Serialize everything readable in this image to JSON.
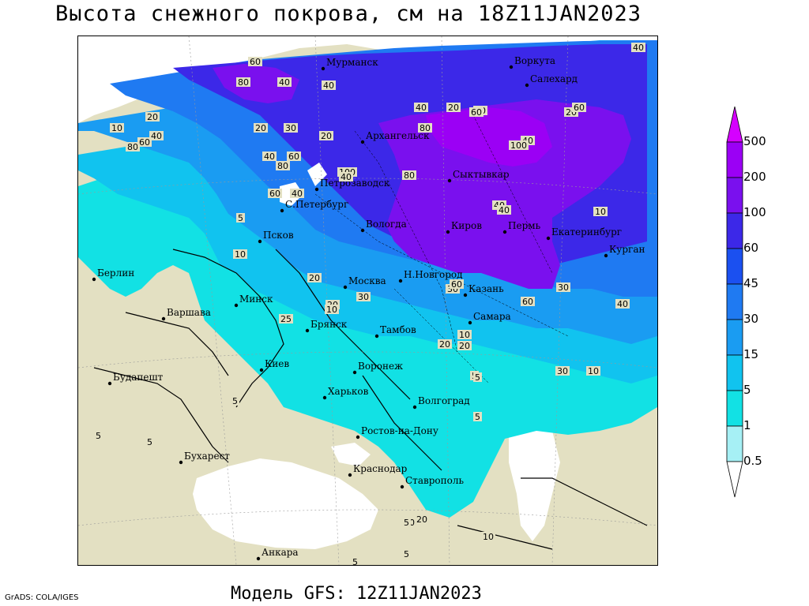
{
  "title": "Высота снежного покрова, см на 18Z11JAN2023",
  "footer": "Модель GFS: 12Z11JAN2023",
  "credit": "GrADS: COLA/IGES",
  "legend": {
    "levels": [
      "500",
      "200",
      "100",
      "60",
      "45",
      "30",
      "15",
      "5",
      "1",
      "0.5"
    ],
    "colors": [
      "#d500ff",
      "#9b00f5",
      "#7a10ee",
      "#3c28e8",
      "#1b50f0",
      "#1f7af2",
      "#1a9cf2",
      "#11c3ef",
      "#12e1e4",
      "#a6f0f5",
      "#ffffff"
    ]
  },
  "cities": [
    {
      "name": "Мурманск"
    },
    {
      "name": "Воркута"
    },
    {
      "name": "Салехард"
    },
    {
      "name": "Архангельск"
    },
    {
      "name": "Сыктывкар"
    },
    {
      "name": "Петрозаводск"
    },
    {
      "name": "С.Петербург"
    },
    {
      "name": "Вологда"
    },
    {
      "name": "Киров"
    },
    {
      "name": "Пермь"
    },
    {
      "name": "Екатеринбург"
    },
    {
      "name": "Курган"
    },
    {
      "name": "Псков"
    },
    {
      "name": "Н.Новгород"
    },
    {
      "name": "Москва"
    },
    {
      "name": "Казань"
    },
    {
      "name": "Берлин"
    },
    {
      "name": "Минск"
    },
    {
      "name": "Варшава"
    },
    {
      "name": "Самара"
    },
    {
      "name": "Брянск"
    },
    {
      "name": "Тамбов"
    },
    {
      "name": "Киев"
    },
    {
      "name": "Воронеж"
    },
    {
      "name": "Будапешт"
    },
    {
      "name": "Харьков"
    },
    {
      "name": "Волгоград"
    },
    {
      "name": "Ростов-на-Дону"
    },
    {
      "name": "Бухарест"
    },
    {
      "name": "Краснодар"
    },
    {
      "name": "Ставрополь"
    },
    {
      "name": "Анкара"
    }
  ],
  "contour_labels": [
    "40",
    "60",
    "80",
    "40",
    "40",
    "40",
    "20",
    "30",
    "20",
    "60",
    "20",
    "10",
    "20",
    "30",
    "20",
    "80",
    "60",
    "40",
    "100",
    "100",
    "80",
    "100",
    "80",
    "60",
    "40",
    "80",
    "40",
    "60",
    "60",
    "40",
    "40",
    "40",
    "10",
    "5",
    "10",
    "20",
    "20",
    "25",
    "10",
    "30",
    "30",
    "60",
    "40",
    "60",
    "30",
    "40",
    "20",
    "20",
    "10",
    "30",
    "10",
    "5",
    "5",
    "5",
    "5",
    "5",
    "5",
    "5",
    "10",
    "10",
    "20",
    "5",
    "5",
    "5"
  ]
}
